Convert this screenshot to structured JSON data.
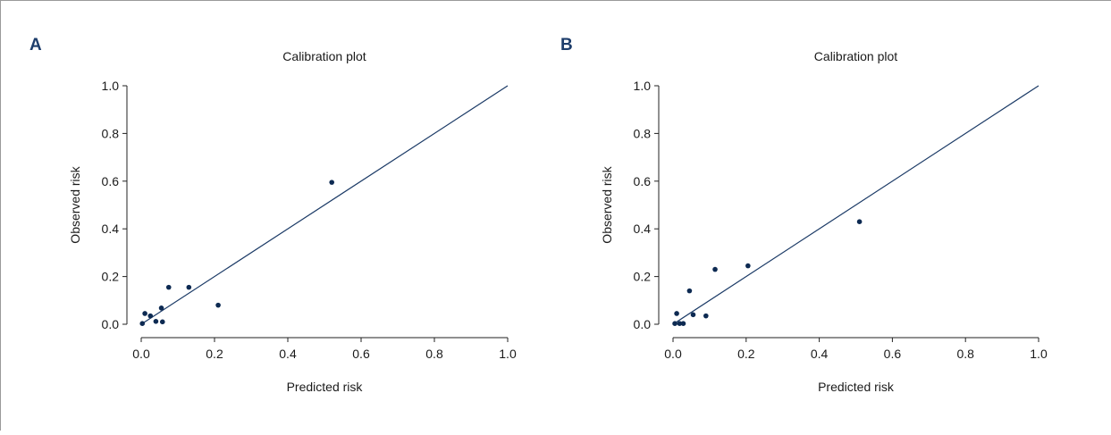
{
  "figure": {
    "panels": [
      {
        "letter": "A"
      },
      {
        "letter": "B"
      }
    ]
  },
  "colors": {
    "marker": "#0d2a52",
    "line": "#1b3a66",
    "axis": "#222222",
    "letter": "#1d3d6b"
  },
  "chart_data": [
    {
      "type": "scatter",
      "title": "Calibration plot",
      "xlabel": "Predicted risk",
      "ylabel": "Observed risk",
      "xlim": [
        0,
        1
      ],
      "ylim": [
        0,
        1
      ],
      "xticks": [
        0,
        0.2,
        0.4,
        0.6,
        0.8,
        1
      ],
      "yticks": [
        0,
        0.2,
        0.4,
        0.6,
        0.8,
        1
      ],
      "xtick_labels": [
        "0.0",
        "0.2",
        "0.4",
        "0.6",
        "0.8",
        "1.0"
      ],
      "ytick_labels": [
        "0.0",
        "0.2",
        "0.4",
        "0.6",
        "0.8",
        "1.0"
      ],
      "reference_line": {
        "x": [
          0,
          1
        ],
        "y": [
          0,
          1
        ]
      },
      "grid": false,
      "points": [
        {
          "x": 0.003,
          "y": 0.003
        },
        {
          "x": 0.01,
          "y": 0.045
        },
        {
          "x": 0.025,
          "y": 0.035
        },
        {
          "x": 0.04,
          "y": 0.012
        },
        {
          "x": 0.055,
          "y": 0.068
        },
        {
          "x": 0.058,
          "y": 0.01
        },
        {
          "x": 0.075,
          "y": 0.155
        },
        {
          "x": 0.13,
          "y": 0.155
        },
        {
          "x": 0.21,
          "y": 0.08
        },
        {
          "x": 0.52,
          "y": 0.595
        }
      ]
    },
    {
      "type": "scatter",
      "title": "Calibration plot",
      "xlabel": "Predicted risk",
      "ylabel": "Observed risk",
      "xlim": [
        0,
        1
      ],
      "ylim": [
        0,
        1
      ],
      "xticks": [
        0,
        0.2,
        0.4,
        0.6,
        0.8,
        1
      ],
      "yticks": [
        0,
        0.2,
        0.4,
        0.6,
        0.8,
        1
      ],
      "xtick_labels": [
        "0.0",
        "0.2",
        "0.4",
        "0.6",
        "0.8",
        "1.0"
      ],
      "ytick_labels": [
        "0.0",
        "0.2",
        "0.4",
        "0.6",
        "0.8",
        "1.0"
      ],
      "reference_line": {
        "x": [
          0,
          1
        ],
        "y": [
          0,
          1
        ]
      },
      "grid": false,
      "points": [
        {
          "x": 0.005,
          "y": 0.003
        },
        {
          "x": 0.01,
          "y": 0.045
        },
        {
          "x": 0.018,
          "y": 0.003
        },
        {
          "x": 0.028,
          "y": 0.003
        },
        {
          "x": 0.045,
          "y": 0.14
        },
        {
          "x": 0.055,
          "y": 0.04
        },
        {
          "x": 0.09,
          "y": 0.035
        },
        {
          "x": 0.115,
          "y": 0.23
        },
        {
          "x": 0.205,
          "y": 0.245
        },
        {
          "x": 0.51,
          "y": 0.43
        }
      ]
    }
  ]
}
